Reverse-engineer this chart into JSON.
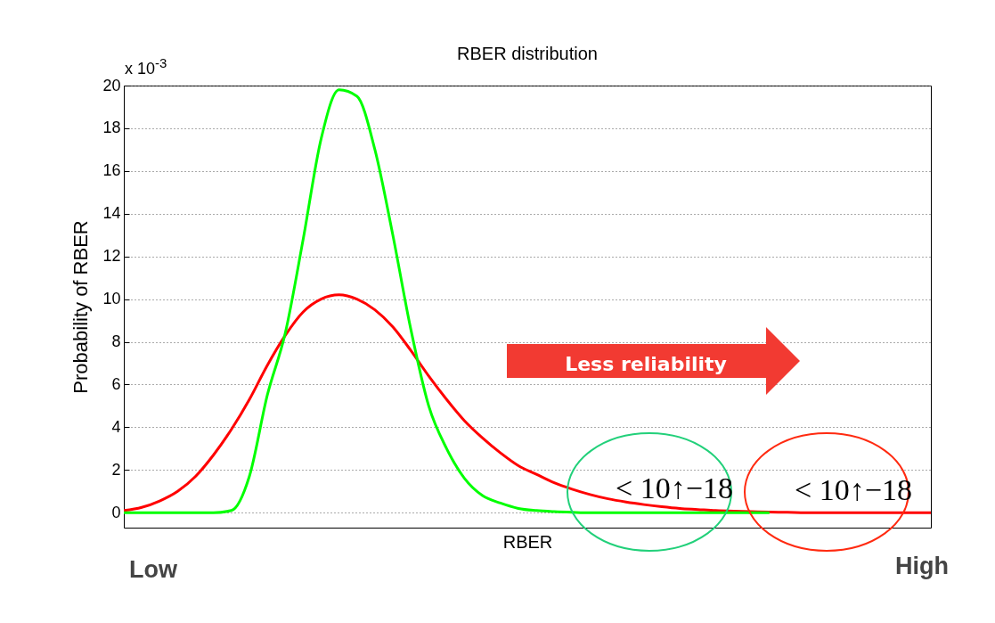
{
  "chart_data": {
    "type": "line",
    "title": "RBER distribution",
    "xlabel": "RBER",
    "ylabel": "Probability of RBER",
    "categories": [
      null,
      null,
      null,
      null,
      null,
      null,
      null,
      null,
      null,
      null,
      null,
      null,
      null,
      null,
      null,
      null,
      null,
      null,
      null,
      null,
      null,
      null,
      null,
      null,
      null,
      null,
      null,
      null,
      null,
      null,
      null,
      null,
      null,
      null,
      null,
      null,
      null,
      null,
      null,
      null,
      null,
      null,
      null,
      null,
      null,
      null
    ],
    "series": [
      {
        "color": "#ff0000",
        "values": [
          0.1,
          0.25,
          0.55,
          1.0,
          1.7,
          2.7,
          3.9,
          5.3,
          6.9,
          8.3,
          9.4,
          10.0,
          10.2,
          10.0,
          9.5,
          8.7,
          7.6,
          6.4,
          5.3,
          4.3,
          3.5,
          2.8,
          2.2,
          1.8,
          1.4,
          1.1,
          0.85,
          0.65,
          0.5,
          0.38,
          0.28,
          0.2,
          0.15,
          0.1,
          0.07,
          0.05,
          0.03,
          0.02,
          0,
          0,
          0,
          0,
          0,
          0,
          0,
          0
        ]
      },
      {
        "color": "#00ff00",
        "values": [
          0,
          0,
          0,
          0,
          0,
          0,
          0.1,
          1.7,
          5.5,
          8.4,
          12.8,
          17.5,
          19.8,
          19.5,
          17.0,
          13.0,
          8.6,
          5.0,
          3.0,
          1.6,
          0.8,
          0.45,
          0.2,
          0.1,
          0.05,
          0.02,
          0,
          0,
          0,
          0,
          0,
          0,
          0,
          0,
          0,
          0,
          0,
          null,
          null,
          null,
          null,
          null,
          null,
          null,
          null,
          null
        ]
      }
    ],
    "ylim": [
      -0.7,
      20
    ],
    "yticks": [
      0,
      2,
      4,
      6,
      8,
      10,
      12,
      14,
      16,
      18,
      20
    ],
    "grid": "y",
    "tick_labels": "y",
    "annotations": [
      "x 10$^{-3}$",
      "Less reliability",
      "< 10↑−18",
      "< 10↑−18",
      "Low",
      "High"
    ]
  }
}
